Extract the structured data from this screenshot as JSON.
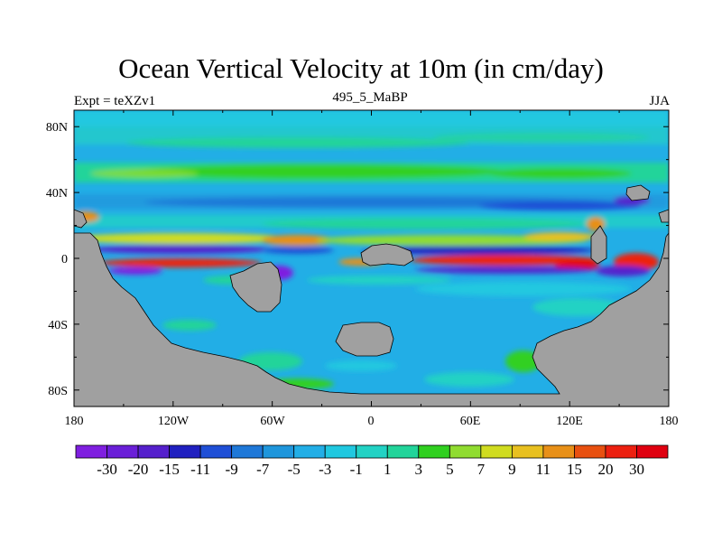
{
  "title": "Ocean Vertical Velocity at 10m (in cm/day)",
  "subtitle_center": "495_5_MaBP",
  "subtitle_left": "Expt = teXZv1",
  "subtitle_right": "JJA",
  "lat_labels": [
    "80N",
    "40N",
    "0",
    "40S",
    "80S"
  ],
  "lon_labels": [
    "180",
    "120W",
    "60W",
    "0",
    "60E",
    "120E",
    "180"
  ],
  "colorbar": {
    "labels": [
      "-30",
      "-20",
      "-15",
      "-11",
      "-9",
      "-7",
      "-5",
      "-3",
      "-1",
      "1",
      "3",
      "5",
      "7",
      "9",
      "11",
      "15",
      "20",
      "30"
    ],
    "colors": [
      "#7f1fe0",
      "#6a1fd8",
      "#5520cc",
      "#2020c0",
      "#1f4fd6",
      "#1f78d8",
      "#1f96dc",
      "#22aee6",
      "#20c8e0",
      "#22d2c4",
      "#22d49a",
      "#30d020",
      "#90dc30",
      "#d0dc20",
      "#e8c020",
      "#e89018",
      "#e85010",
      "#ec2010",
      "#e00010"
    ]
  },
  "colors": {
    "land": "#a0a0a0",
    "ocean_base": "#22aee6"
  }
}
